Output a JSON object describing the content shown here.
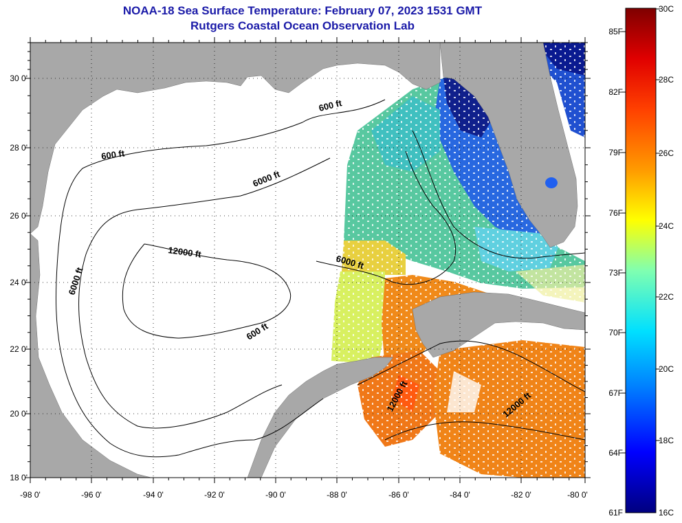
{
  "title": "NOAA-18 Sea Surface Temperature:  February 07, 2023 1531 GMT",
  "subtitle": "Rutgers Coastal Ocean Observation Lab",
  "axes": {
    "lon_ticks": [
      "-98 0'",
      "-96 0'",
      "-94 0'",
      "-92 0'",
      "-90 0'",
      "-88 0'",
      "-86 0'",
      "-84 0'",
      "-82 0'",
      "-80 0'"
    ],
    "lat_ticks": [
      "18 0'",
      "20 0'",
      "22 0'",
      "24 0'",
      "26 0'",
      "28 0'",
      "30 0'"
    ]
  },
  "contour_labels": [
    "600 ft",
    "600 ft",
    "6000 ft",
    "12000 ft",
    "6000 ft",
    "6000 ft",
    "600 ft",
    "12000 ft",
    "12000 ft"
  ],
  "colorbar": {
    "fahrenheit": [
      "85F",
      "82F",
      "79F",
      "76F",
      "73F",
      "70F",
      "67F",
      "64F",
      "61F"
    ],
    "celsius": [
      "30C",
      "28C",
      "26C",
      "24C",
      "22C",
      "20C",
      "18C",
      "16C"
    ]
  },
  "colors": {
    "land": "#a8a8a8",
    "cloud": "#ffffff",
    "title": "#1a1aa8"
  }
}
